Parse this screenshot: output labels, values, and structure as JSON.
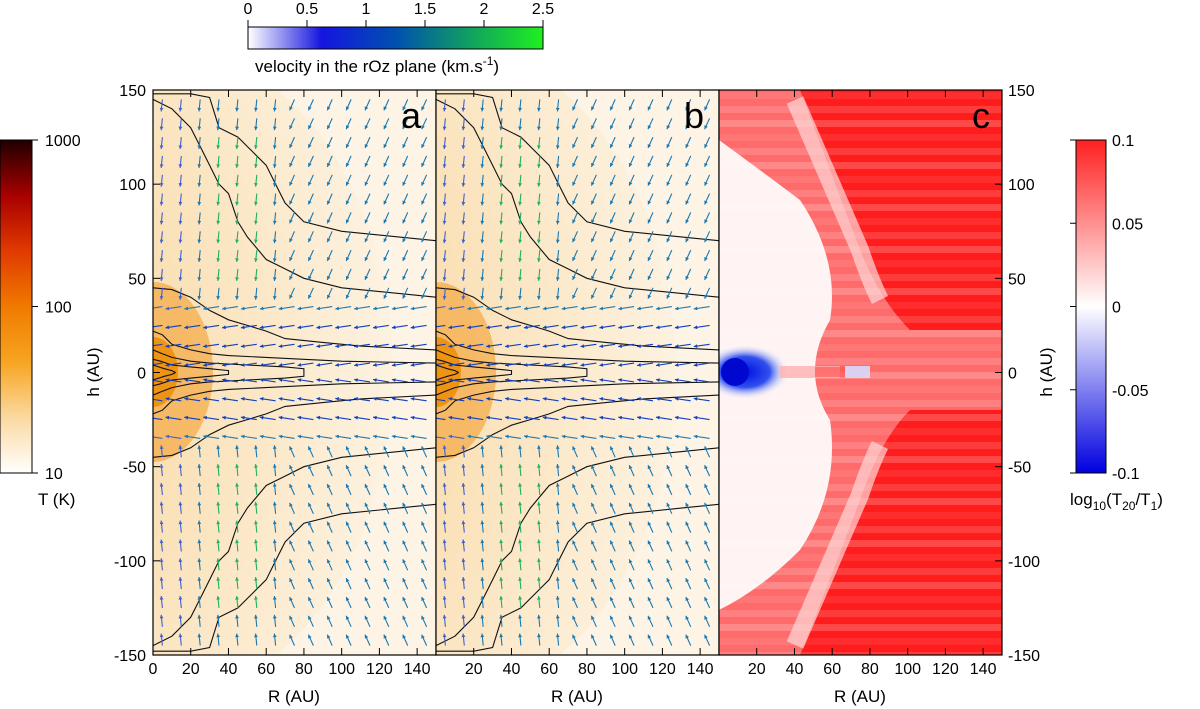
{
  "chart_data": [
    {
      "id": "a",
      "type": "heatmap",
      "panel_letter": "a",
      "description_colormap": "temperature",
      "xlabel": "R (AU)",
      "ylabel": "h (AU)",
      "xlim": [
        0,
        150
      ],
      "ylim": [
        -150,
        150
      ],
      "xticks": [
        0,
        20,
        40,
        60,
        80,
        100,
        120,
        140
      ],
      "yticks": [
        -150,
        -100,
        -50,
        0,
        50,
        100,
        150
      ],
      "overlays": [
        "temperature contours",
        "velocity arrows"
      ]
    },
    {
      "id": "b",
      "type": "heatmap",
      "panel_letter": "b",
      "xlabel": "R (AU)",
      "xlim": [
        0,
        150
      ],
      "ylim": [
        -150,
        150
      ],
      "xticks": [
        20,
        40,
        60,
        80,
        100,
        120,
        140
      ],
      "overlays": [
        "temperature contours",
        "velocity arrows"
      ]
    },
    {
      "id": "c",
      "type": "heatmap",
      "panel_letter": "c",
      "xlabel": "R (AU)",
      "ylabel": "h (AU)",
      "xlim": [
        0,
        150
      ],
      "ylim": [
        -150,
        150
      ],
      "xticks": [
        20,
        40,
        60,
        80,
        100,
        120,
        140
      ],
      "yticks": [
        -150,
        -100,
        -50,
        0,
        50,
        100,
        150
      ]
    }
  ],
  "colorbars": {
    "temperature": {
      "label": "T (K)",
      "scale": "log",
      "range": [
        10,
        1000
      ],
      "ticks": [
        "1000",
        "100",
        "10"
      ],
      "colors": [
        "#ffffff",
        "#fbd9a0",
        "#f7a521",
        "#f07a00",
        "#e03a00",
        "#a80000",
        "#200000"
      ]
    },
    "velocity": {
      "label": "velocity in the rOz plane (km.s-1)",
      "label_main": "velocity in the rOz plane (km.s",
      "label_sup": "-1",
      "label_end": ")",
      "range": [
        0,
        2.5
      ],
      "ticks": [
        "0",
        "0.5",
        "1",
        "1.5",
        "2",
        "2.5"
      ],
      "colors": [
        "#ffffff",
        "#1515e0",
        "#0050b0",
        "#10a060",
        "#20f020"
      ]
    },
    "ratio": {
      "label": "log10(T20/T1)",
      "label_parts": {
        "a": "log",
        "b": "10",
        "c": "(T",
        "d": "20",
        "e": "/T",
        "f": "1",
        "g": ")"
      },
      "range": [
        -0.1,
        0.1
      ],
      "ticks": [
        "0.1",
        "0.05",
        "0",
        "-0.05",
        "-0.1"
      ],
      "colors": [
        "#0000e0",
        "#ffffff",
        "#ff2020"
      ]
    }
  }
}
